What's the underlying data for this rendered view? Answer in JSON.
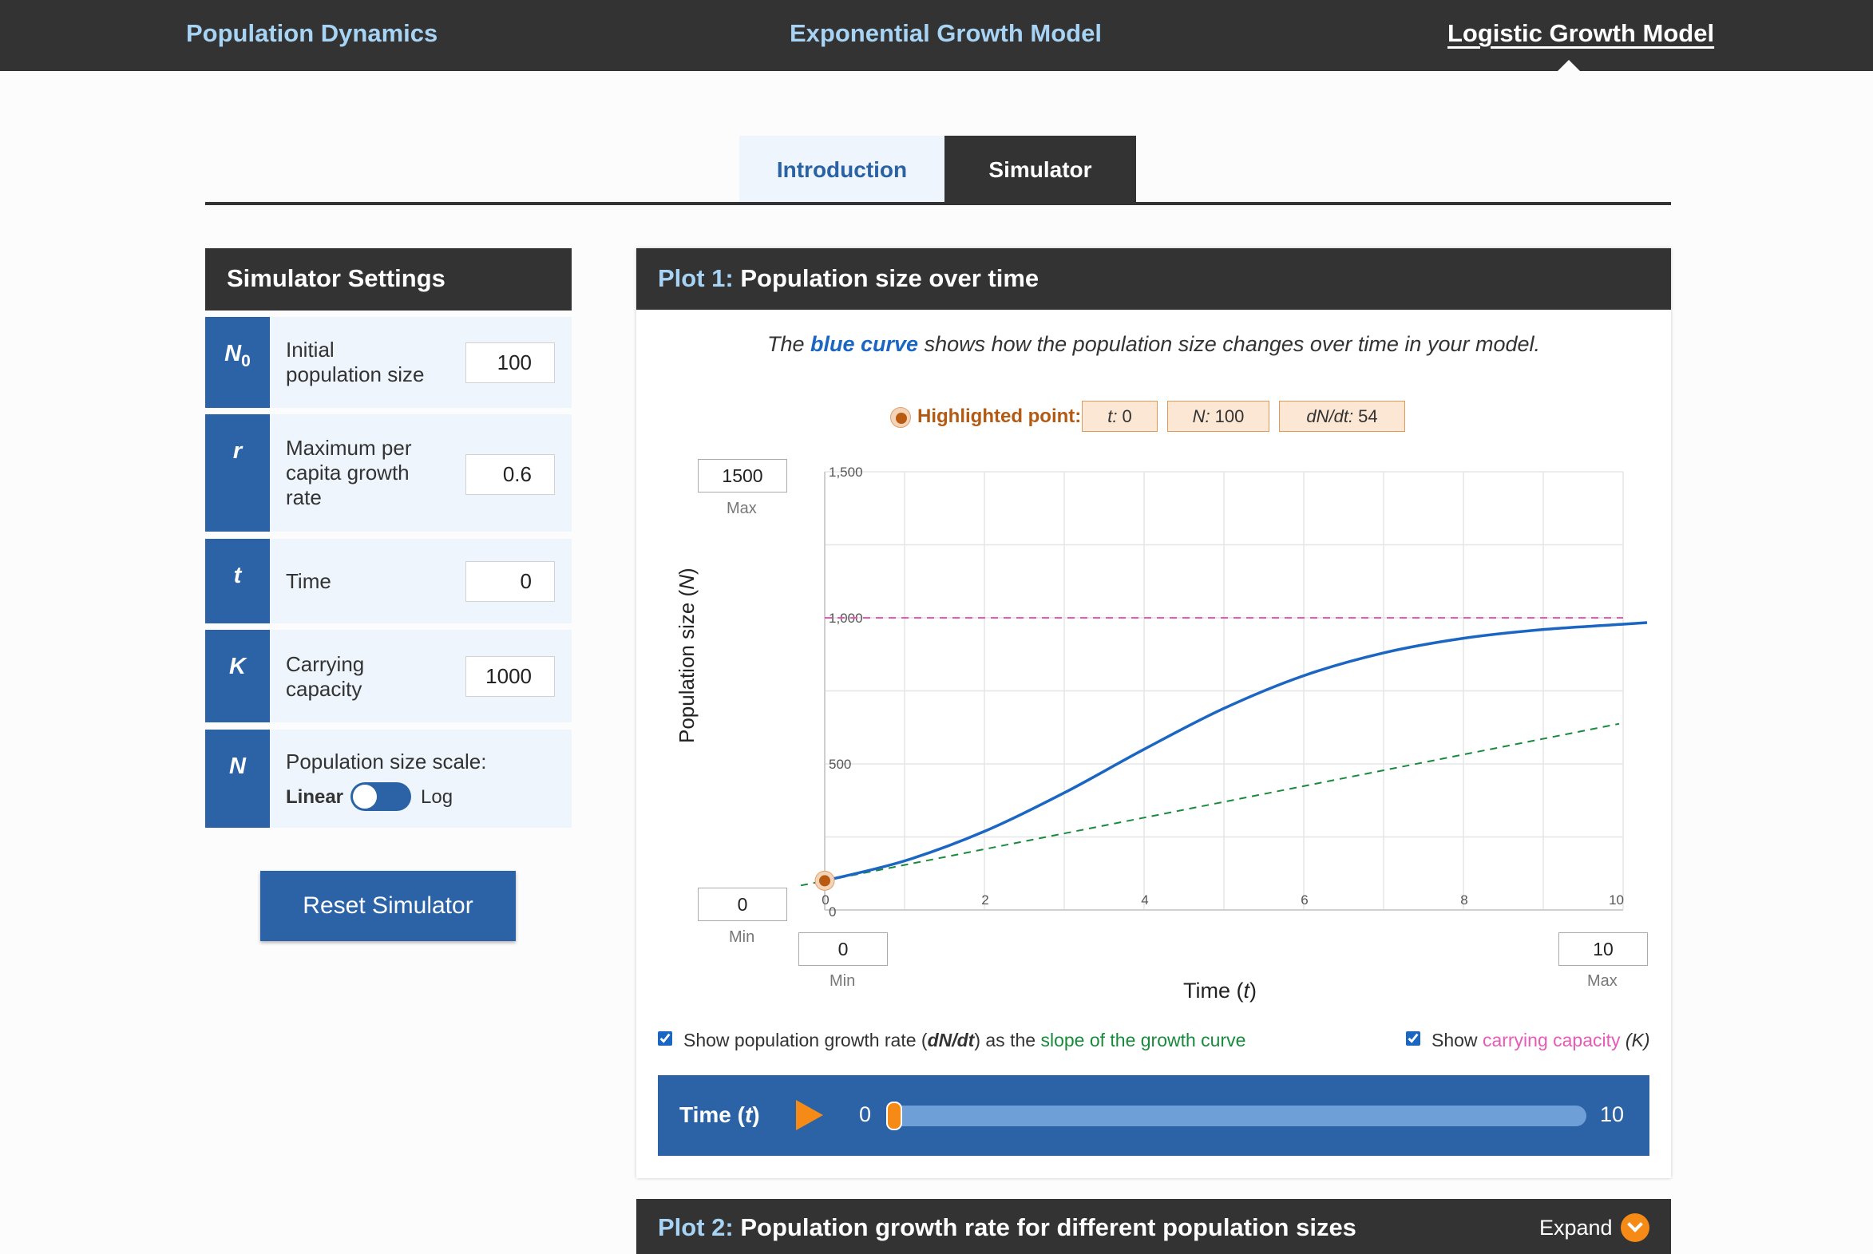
{
  "nav": {
    "items": [
      "Population Dynamics",
      "Exponential Growth Model",
      "Logistic Growth Model"
    ]
  },
  "tabs": {
    "intro": "Introduction",
    "simulator": "Simulator"
  },
  "settings": {
    "title": "Simulator Settings",
    "params": [
      {
        "symbol": "N",
        "sub": "0",
        "label_lines": [
          "Initial",
          "population size"
        ],
        "value": "100"
      },
      {
        "symbol": "r",
        "sub": "",
        "label_lines": [
          "Maximum per",
          "capita growth",
          "rate"
        ],
        "value": "0.6"
      },
      {
        "symbol": "t",
        "sub": "",
        "label_lines": [
          "Time"
        ],
        "value": "0"
      },
      {
        "symbol": "K",
        "sub": "",
        "label_lines": [
          "Carrying",
          "capacity"
        ],
        "value": "1000"
      }
    ],
    "scale": {
      "symbol": "N",
      "label": "Population size scale:",
      "linear": "Linear",
      "log": "Log"
    },
    "reset_label": "Reset Simulator"
  },
  "plot1": {
    "num": "Plot 1:",
    "title": "Population size over time",
    "desc_before": "The ",
    "desc_blue": "blue curve",
    "desc_after": " shows how the population size changes over time in your model.",
    "highlight": {
      "label": "Highlighted point:",
      "t_label": "t:",
      "t_value": "0",
      "n_label": "N:",
      "n_value": "100",
      "dndt_label": "dN/dt:",
      "dndt_value": "54"
    },
    "y_max_input": "1500",
    "y_max_caption": "Max",
    "y_min_input": "0",
    "y_min_caption": "Min",
    "x_min_input": "0",
    "x_min_caption": "Min",
    "x_max_input": "10",
    "x_max_caption": "Max",
    "ylabel_text": "Population size (",
    "ylabel_var": "N",
    "ylabel_end": ")",
    "xlabel_text": "Time (",
    "xlabel_var": "t",
    "xlabel_end": ")",
    "show_slope": {
      "before": "Show population growth rate (",
      "var": "dN/dt",
      "middle": ") as the ",
      "green": "slope of the growth curve"
    },
    "show_k": {
      "before": "Show ",
      "pink": "carrying capacity",
      "after": " (K)"
    },
    "timebar": {
      "label": "Time (",
      "var": "t",
      "end": ")",
      "min": "0",
      "max": "10",
      "value_fraction": 0
    }
  },
  "plot2": {
    "num": "Plot 2:",
    "title": "Population growth rate for different population sizes",
    "expand_label": "Expand"
  },
  "colors": {
    "accent_blue": "#2b63a6",
    "curve_blue": "#1a66c2",
    "carrying_pink": "#e85bb5",
    "slope_green": "#178a3c",
    "highlight_orange": "#b35a13",
    "play_orange": "#f58a17"
  },
  "chart_data": {
    "type": "line",
    "xlim": [
      0,
      10
    ],
    "ylim": [
      0,
      1500
    ],
    "x_ticks": [
      "0",
      "2",
      "4",
      "6",
      "8",
      "10"
    ],
    "y_ticks": [
      "0",
      "500",
      "1,000",
      "1,500"
    ],
    "grid": true,
    "N0": 100,
    "r": 0.6,
    "K": 1000,
    "series": [
      {
        "style": "solid",
        "color": "blue",
        "x": [
          0,
          1,
          2,
          3,
          4,
          5,
          6,
          7,
          8,
          9,
          10
        ],
        "y": [
          100,
          168,
          269,
          401,
          550,
          690,
          802,
          880,
          930,
          960,
          978
        ]
      }
    ],
    "carrying_capacity_line": {
      "y": 1000,
      "color": "pink",
      "style": "dashed"
    },
    "tangent_line": {
      "x0": 0,
      "y0": 100,
      "slope": 54,
      "color": "green",
      "style": "dashed"
    },
    "highlighted_point": {
      "x": 0,
      "y": 100
    }
  }
}
